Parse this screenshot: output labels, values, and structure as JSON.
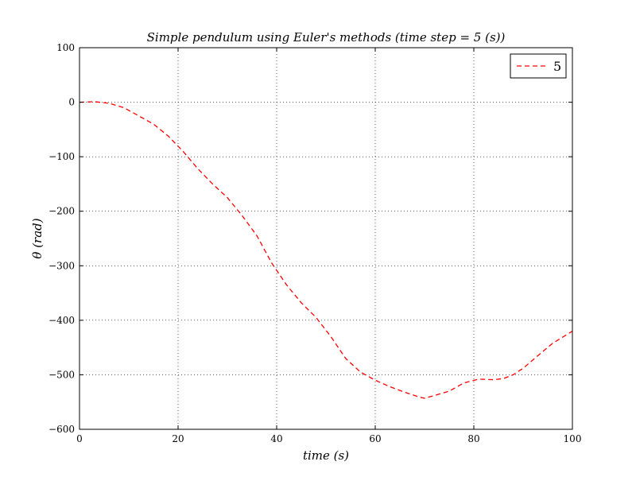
{
  "chart_data": {
    "type": "line",
    "title": "Simple pendulum using Euler's methods (time step = 5 (s))",
    "xlabel": "time (s)",
    "ylabel": "θ (rad)",
    "xlim": [
      0,
      100
    ],
    "ylim": [
      -600,
      100
    ],
    "xticks": [
      0,
      20,
      40,
      60,
      80,
      100
    ],
    "xtick_labels": [
      "0",
      "20",
      "40",
      "60",
      "80",
      "100"
    ],
    "yticks": [
      100,
      0,
      -100,
      -200,
      -300,
      -400,
      -500,
      -600
    ],
    "ytick_labels": [
      "100",
      "0",
      "−100",
      "−200",
      "−300",
      "−400",
      "−500",
      "−600"
    ],
    "grid": true,
    "legend_position": "top-right",
    "series": [
      {
        "name": "5",
        "color": "#ff0000",
        "line_style": "dashed",
        "x": [
          0,
          3,
          6,
          9,
          12,
          15,
          18,
          21,
          24,
          27,
          30,
          33,
          36,
          39,
          42,
          45,
          48,
          51,
          54,
          57,
          60,
          63,
          66,
          69,
          70,
          72,
          75,
          78,
          81,
          84,
          86,
          88,
          90,
          93,
          96,
          100
        ],
        "y": [
          0,
          1,
          -2,
          -10,
          -25,
          -40,
          -62,
          -90,
          -122,
          -150,
          -175,
          -208,
          -245,
          -295,
          -335,
          -368,
          -395,
          -430,
          -470,
          -495,
          -510,
          -522,
          -532,
          -541,
          -543,
          -538,
          -530,
          -515,
          -508,
          -509,
          -507,
          -500,
          -488,
          -465,
          -442,
          -420
        ]
      }
    ]
  }
}
